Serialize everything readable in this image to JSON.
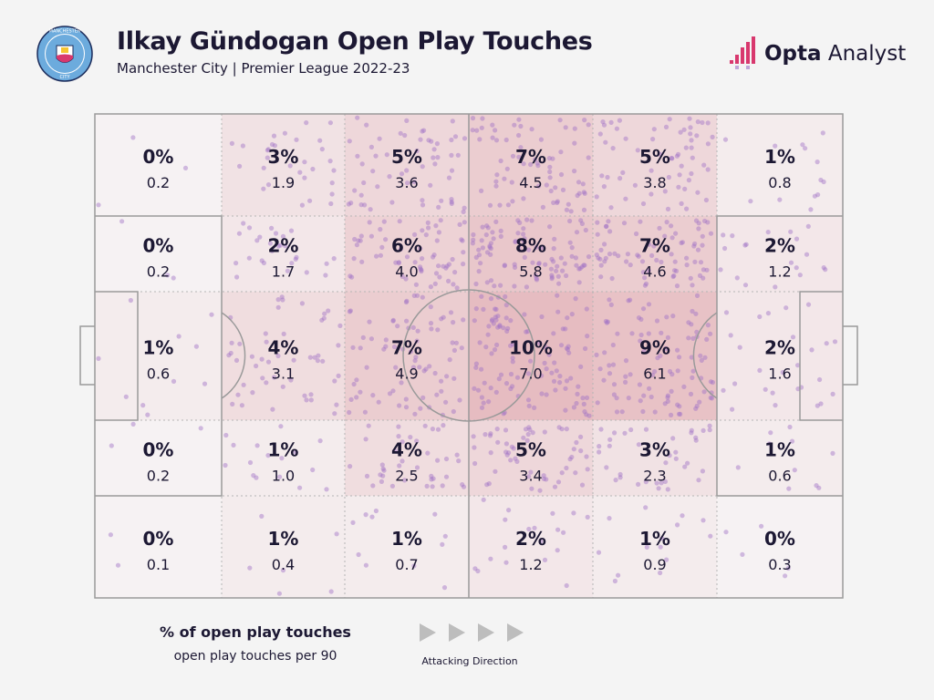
{
  "header": {
    "title": "Ilkay Gündogan Open Play Touches",
    "subtitle": "Manchester City | Premier League 2022-23",
    "crest_text": "MANCHESTER CITY",
    "brand_bold": "Opta",
    "brand_light": " Analyst"
  },
  "legend": {
    "main": "% of open play touches",
    "sub": "open play touches per 90",
    "direction": "Attacking Direction"
  },
  "colors": {
    "text": "#1c1833",
    "heat": "#d98a93",
    "dots": "#9f72c6",
    "pitch_lines": "#9a9a9a",
    "brand_pink": "#d8386e"
  },
  "chart_data": {
    "type": "heatmap",
    "title": "Ilkay Gündogan Open Play Touches",
    "subtitle": "Manchester City | Premier League 2022-23",
    "xlabel": "Attacking Direction",
    "columns": 6,
    "rows": 5,
    "cells": [
      [
        {
          "pct": "0%",
          "per90": "0.2"
        },
        {
          "pct": "3%",
          "per90": "1.9"
        },
        {
          "pct": "5%",
          "per90": "3.6"
        },
        {
          "pct": "7%",
          "per90": "4.5"
        },
        {
          "pct": "5%",
          "per90": "3.8"
        },
        {
          "pct": "1%",
          "per90": "0.8"
        }
      ],
      [
        {
          "pct": "0%",
          "per90": "0.2"
        },
        {
          "pct": "2%",
          "per90": "1.7"
        },
        {
          "pct": "6%",
          "per90": "4.0"
        },
        {
          "pct": "8%",
          "per90": "5.8"
        },
        {
          "pct": "7%",
          "per90": "4.6"
        },
        {
          "pct": "2%",
          "per90": "1.2"
        }
      ],
      [
        {
          "pct": "1%",
          "per90": "0.6"
        },
        {
          "pct": "4%",
          "per90": "3.1"
        },
        {
          "pct": "7%",
          "per90": "4.9"
        },
        {
          "pct": "10%",
          "per90": "7.0"
        },
        {
          "pct": "9%",
          "per90": "6.1"
        },
        {
          "pct": "2%",
          "per90": "1.6"
        }
      ],
      [
        {
          "pct": "0%",
          "per90": "0.2"
        },
        {
          "pct": "1%",
          "per90": "1.0"
        },
        {
          "pct": "4%",
          "per90": "2.5"
        },
        {
          "pct": "5%",
          "per90": "3.4"
        },
        {
          "pct": "3%",
          "per90": "2.3"
        },
        {
          "pct": "1%",
          "per90": "0.6"
        }
      ],
      [
        {
          "pct": "0%",
          "per90": "0.1"
        },
        {
          "pct": "1%",
          "per90": "0.4"
        },
        {
          "pct": "1%",
          "per90": "0.7"
        },
        {
          "pct": "2%",
          "per90": "1.2"
        },
        {
          "pct": "1%",
          "per90": "0.9"
        },
        {
          "pct": "0%",
          "per90": "0.3"
        }
      ]
    ],
    "legend": [
      "% of open play touches",
      "open play touches per 90"
    ]
  }
}
